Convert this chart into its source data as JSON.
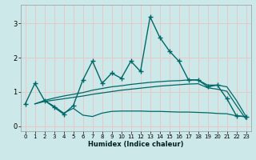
{
  "xlabel": "Humidex (Indice chaleur)",
  "bg_color": "#cce8e8",
  "grid_color": "#e8c8c8",
  "line_color": "#006868",
  "xlim": [
    -0.5,
    23.5
  ],
  "ylim": [
    -0.15,
    3.55
  ],
  "xticks": [
    0,
    1,
    2,
    3,
    4,
    5,
    6,
    7,
    8,
    9,
    10,
    11,
    12,
    13,
    14,
    15,
    16,
    17,
    18,
    19,
    20,
    21,
    22,
    23
  ],
  "yticks": [
    0,
    1,
    2,
    3
  ],
  "series": {
    "main_line": {
      "x": [
        0,
        1,
        2,
        3,
        4,
        5,
        6,
        7,
        8,
        9,
        10,
        11,
        12,
        13,
        14,
        15,
        16,
        17,
        18,
        19,
        20,
        21,
        22,
        23
      ],
      "y": [
        0.65,
        1.25,
        0.75,
        0.55,
        0.35,
        0.6,
        1.35,
        1.9,
        1.25,
        1.55,
        1.4,
        1.9,
        1.6,
        3.2,
        2.6,
        2.2,
        1.9,
        1.35,
        1.35,
        1.15,
        1.2,
        0.8,
        0.3,
        0.28
      ]
    },
    "upper_band": {
      "x": [
        1,
        2,
        3,
        4,
        5,
        6,
        7,
        8,
        9,
        10,
        11,
        12,
        13,
        14,
        15,
        16,
        17,
        18,
        19,
        20,
        21,
        22,
        23
      ],
      "y": [
        0.65,
        0.75,
        0.82,
        0.88,
        0.93,
        0.98,
        1.05,
        1.1,
        1.15,
        1.18,
        1.22,
        1.25,
        1.28,
        1.3,
        1.32,
        1.33,
        1.35,
        1.35,
        1.2,
        1.2,
        1.15,
        0.75,
        0.28
      ]
    },
    "mid_band": {
      "x": [
        1,
        2,
        3,
        4,
        5,
        6,
        7,
        8,
        9,
        10,
        11,
        12,
        13,
        14,
        15,
        16,
        17,
        18,
        19,
        20,
        21,
        22,
        23
      ],
      "y": [
        0.65,
        0.72,
        0.76,
        0.8,
        0.84,
        0.88,
        0.93,
        0.97,
        1.01,
        1.05,
        1.08,
        1.11,
        1.14,
        1.17,
        1.19,
        1.21,
        1.23,
        1.24,
        1.12,
        1.08,
        1.02,
        0.6,
        0.2
      ]
    },
    "lower_band": {
      "x": [
        2,
        3,
        4,
        5,
        6,
        7,
        8,
        9,
        10,
        11,
        12,
        13,
        14,
        15,
        16,
        17,
        18,
        19,
        20,
        21,
        22,
        23
      ],
      "y": [
        0.75,
        0.58,
        0.38,
        0.52,
        0.32,
        0.28,
        0.38,
        0.43,
        0.44,
        0.44,
        0.44,
        0.43,
        0.43,
        0.42,
        0.41,
        0.41,
        0.4,
        0.39,
        0.37,
        0.36,
        0.3,
        0.27
      ]
    }
  }
}
